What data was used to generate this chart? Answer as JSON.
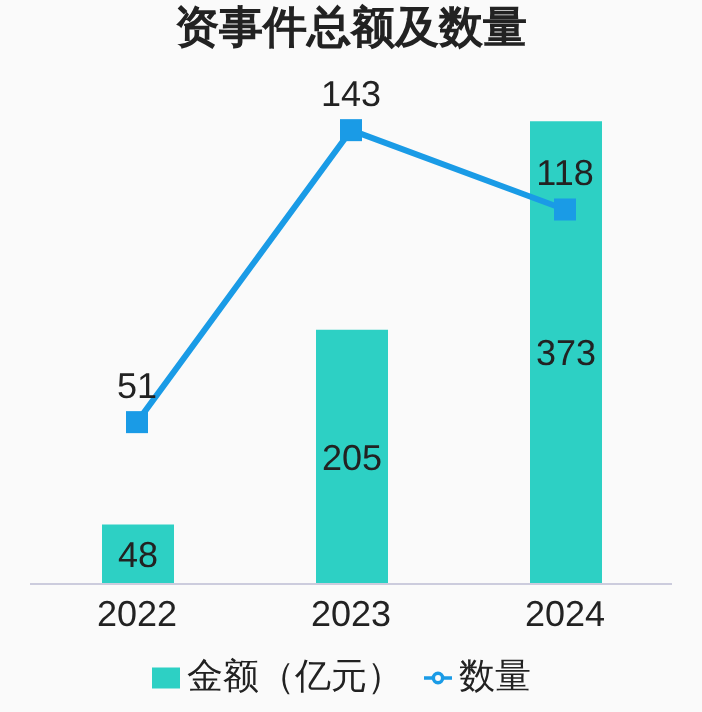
{
  "chart_data": {
    "type": "bar",
    "title": "资事件总额及数量",
    "categories": [
      "2022",
      "2023",
      "2024"
    ],
    "series": [
      {
        "name": "金额（亿元）",
        "color": "#2dd0c4",
        "values": [
          48,
          205,
          373
        ]
      },
      {
        "name": "数量",
        "type": "line",
        "axis": "y2",
        "color": "#1a9be6",
        "values": [
          51,
          143,
          118
        ],
        "marker": "square"
      }
    ],
    "data_labels": true,
    "legend": "bottom",
    "grid": false,
    "tick_labels": "x"
  }
}
